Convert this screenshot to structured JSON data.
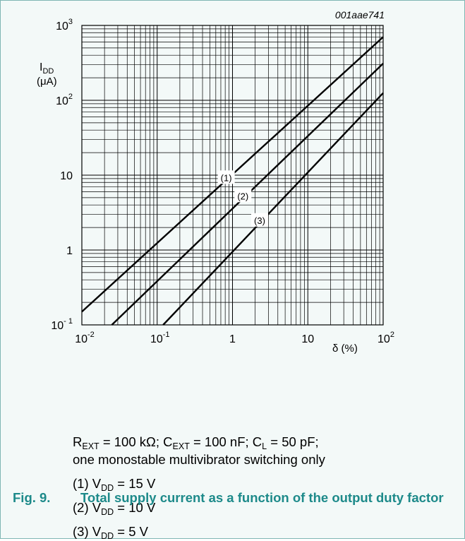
{
  "figure_code": "001aae741",
  "chart_data": {
    "type": "line",
    "x_scale": "log",
    "y_scale": "log",
    "xlim": [
      0.01,
      100
    ],
    "ylim": [
      0.1,
      1000
    ],
    "grid": true,
    "ylabel": {
      "main": "I",
      "sub": "DD",
      "unit": "(μA)"
    },
    "xlabel": "δ (%)",
    "x_ticks": [
      {
        "base": "10",
        "exp": "-2"
      },
      {
        "base": "10",
        "exp": "-1"
      },
      {
        "base": "1",
        "exp": ""
      },
      {
        "base": "10",
        "exp": ""
      },
      {
        "base": "10",
        "exp": "2"
      }
    ],
    "y_ticks": [
      {
        "base": "10",
        "exp": "- 1"
      },
      {
        "base": "1",
        "exp": ""
      },
      {
        "base": "10",
        "exp": ""
      },
      {
        "base": "10",
        "exp": "2"
      },
      {
        "base": "10",
        "exp": "3"
      }
    ],
    "series": [
      {
        "name": "(1)",
        "x": [
          0.01,
          100
        ],
        "y": [
          0.15,
          700
        ]
      },
      {
        "name": "(2)",
        "x": [
          0.025,
          100
        ],
        "y": [
          0.1,
          310
        ]
      },
      {
        "name": "(3)",
        "x": [
          0.12,
          100
        ],
        "y": [
          0.1,
          125
        ]
      }
    ]
  },
  "conditions": {
    "r_ext": {
      "symbol": "R",
      "sub": "EXT",
      "value": " = 100 kΩ; "
    },
    "c_ext": {
      "symbol": "C",
      "sub": "EXT",
      "value": " = 100 nF; "
    },
    "c_l": {
      "symbol": "C",
      "sub": "L",
      "value": " = 50 pF;"
    },
    "line2": "one monostable multivibrator switching only"
  },
  "legend": [
    {
      "label": "(1) V",
      "sub": "DD",
      "value": " = 15 V"
    },
    {
      "label": "(2) V",
      "sub": "DD",
      "value": " = 10 V"
    },
    {
      "label": "(3) V",
      "sub": "DD",
      "value": " = 5 V"
    }
  ],
  "caption": {
    "number": "Fig. 9.",
    "text": "Total supply current as a function of the output duty factor"
  }
}
